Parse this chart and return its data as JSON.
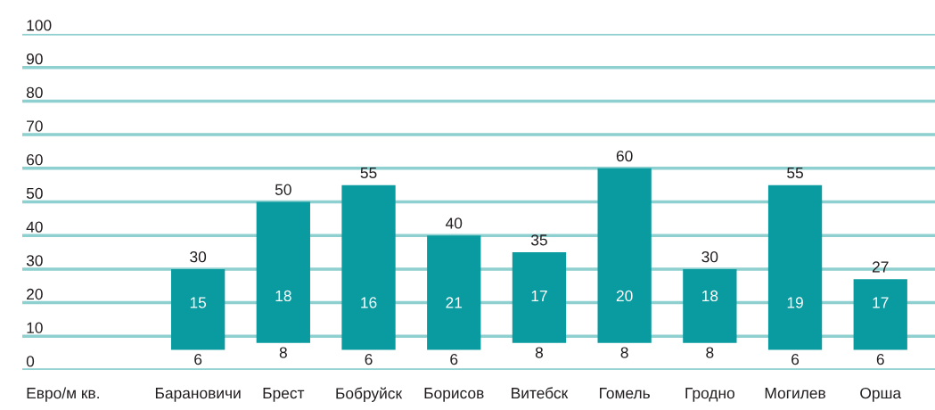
{
  "chart_data": {
    "type": "bar",
    "categories": [
      "Барановичи",
      "Брест",
      "Бобруйск",
      "Борисов",
      "Витебск",
      "Гомель",
      "Гродно",
      "Могилев",
      "Орша"
    ],
    "base": [
      6,
      8,
      6,
      6,
      8,
      8,
      8,
      6,
      6
    ],
    "values": [
      24,
      42,
      49,
      34,
      27,
      52,
      22,
      49,
      21
    ],
    "color": "#0a9ba0",
    "ylabel": "Евро/м кв.",
    "ylim": [
      0,
      100
    ],
    "yticks": [
      0,
      10,
      20,
      30,
      40,
      50,
      60,
      70,
      80,
      90,
      100
    ],
    "grid": "y",
    "annotations": [
      {
        "text": "30",
        "x": "Барановичи",
        "y": 30
      },
      {
        "text": "50",
        "x": "Брест",
        "y": 50
      },
      {
        "text": "55",
        "x": "Бобруйск",
        "y": 55
      },
      {
        "text": "40",
        "x": "Борисов",
        "y": 40
      },
      {
        "text": "35",
        "x": "Витебск",
        "y": 35
      },
      {
        "text": "60",
        "x": "Гомель",
        "y": 60
      },
      {
        "text": "30",
        "x": "Гродно",
        "y": 30
      },
      {
        "text": "55",
        "x": "Могилев",
        "y": 55
      },
      {
        "text": "27",
        "x": "Орша",
        "y": 27
      },
      {
        "text": "6",
        "x": "Барановичи",
        "y": 6
      },
      {
        "text": "8",
        "x": "Брест",
        "y": 8
      },
      {
        "text": "6",
        "x": "Бобруйск",
        "y": 6
      },
      {
        "text": "6",
        "x": "Борисов",
        "y": 6
      },
      {
        "text": "8",
        "x": "Витебск",
        "y": 8
      },
      {
        "text": "8",
        "x": "Гомель",
        "y": 8
      },
      {
        "text": "8",
        "x": "Гродно",
        "y": 8
      },
      {
        "text": "6",
        "x": "Могилев",
        "y": 6
      },
      {
        "text": "6",
        "x": "Орша",
        "y": 6
      },
      "15",
      "18",
      "16",
      "21",
      "17",
      "20",
      "18",
      "19",
      "17"
    ]
  }
}
